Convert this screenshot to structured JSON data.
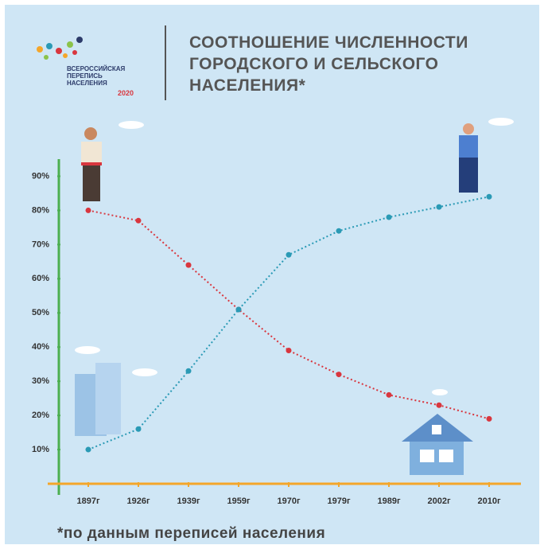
{
  "logo": {
    "lines": [
      "ВСЕРОССИЙСКАЯ",
      "ПЕРЕПИСЬ",
      "НАСЕЛЕНИЯ"
    ],
    "year": "2020"
  },
  "chart_data": {
    "type": "line",
    "title": "СООТНОШЕНИЕ ЧИСЛЕННОСТИ ГОРОДСКОГО И СЕЛЬСКОГО НАСЕЛЕНИЯ*",
    "note": "*по данным переписей населения",
    "categories": [
      "1897г",
      "1926г",
      "1939г",
      "1959г",
      "1970г",
      "1979г",
      "1989г",
      "2002г",
      "2010г"
    ],
    "series": [
      {
        "color": "#d9363e",
        "values": [
          80,
          77,
          64,
          51,
          39,
          32,
          26,
          23,
          19
        ]
      },
      {
        "color": "#2a9ab5",
        "values": [
          10,
          16,
          33,
          51,
          67,
          74,
          78,
          81,
          84
        ]
      }
    ],
    "ylim": [
      0,
      95
    ],
    "yticks": [
      {
        "value": 10,
        "label": "10%"
      },
      {
        "value": 20,
        "label": "20%"
      },
      {
        "value": 30,
        "label": "30%"
      },
      {
        "value": 40,
        "label": "40%"
      },
      {
        "value": 50,
        "label": "50%"
      },
      {
        "value": 60,
        "label": "60%"
      },
      {
        "value": 70,
        "label": "70%"
      },
      {
        "value": 80,
        "label": "80%"
      },
      {
        "value": 90,
        "label": "90%"
      }
    ],
    "grid": false
  }
}
